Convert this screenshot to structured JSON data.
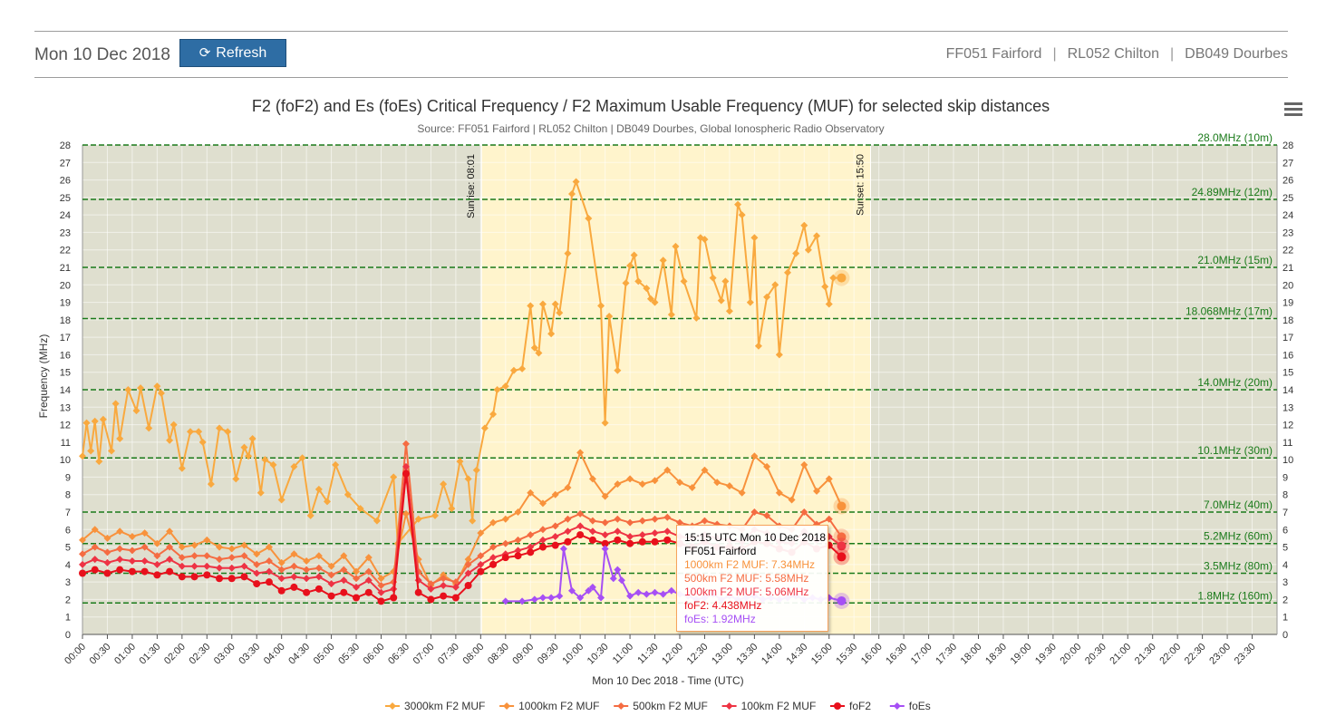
{
  "header": {
    "date": "Mon 10 Dec 2018",
    "refresh_label": "Refresh",
    "stations": [
      "FF051 Fairford",
      "RL052 Chilton",
      "DB049 Dourbes"
    ],
    "separator": "|"
  },
  "chart_data": {
    "type": "line",
    "title": "F2 (foF2) and Es (foEs) Critical Frequency / F2 Maximum Usable Frequency (MUF) for selected skip distances",
    "subtitle": "Source: FF051 Fairford | RL052 Chilton | DB049 Dourbes, Global Ionospheric Radio Observatory",
    "xlabel": "Mon 10 Dec 2018 - Time (UTC)",
    "ylabel": "Frequency (MHz)",
    "ylim": [
      0,
      28
    ],
    "xlim": [
      "00:00",
      "24:00"
    ],
    "x_ticks": [
      "00:00",
      "00:30",
      "01:00",
      "01:30",
      "02:00",
      "02:30",
      "03:00",
      "03:30",
      "04:00",
      "04:30",
      "05:00",
      "05:30",
      "06:00",
      "06:30",
      "07:00",
      "07:30",
      "08:00",
      "08:30",
      "09:00",
      "09:30",
      "10:00",
      "10:30",
      "11:00",
      "11:30",
      "12:00",
      "12:30",
      "13:00",
      "13:30",
      "14:00",
      "14:30",
      "15:00",
      "15:30",
      "16:00",
      "16:30",
      "17:00",
      "17:30",
      "18:00",
      "18:30",
      "19:00",
      "19:30",
      "20:00",
      "20:30",
      "21:00",
      "21:30",
      "22:00",
      "22:30",
      "23:00",
      "23:30"
    ],
    "y_ticks": [
      0,
      1,
      2,
      3,
      4,
      5,
      6,
      7,
      8,
      9,
      10,
      11,
      12,
      13,
      14,
      15,
      16,
      17,
      18,
      19,
      20,
      21,
      22,
      23,
      24,
      25,
      26,
      27,
      28
    ],
    "night_color": "#dfdfcf",
    "day_color": "#fff4cc",
    "daylight": {
      "sunrise": "08:01",
      "sunset": "15:50",
      "sunrise_label": "Sunrise: 08:01",
      "sunset_label": "Sunset: 15:50"
    },
    "band_lines": [
      {
        "value": 28.0,
        "label": "28.0MHz (10m)"
      },
      {
        "value": 24.89,
        "label": "24.89MHz (12m)"
      },
      {
        "value": 21.0,
        "label": "21.0MHz (15m)"
      },
      {
        "value": 18.068,
        "label": "18.068MHz (17m)"
      },
      {
        "value": 14.0,
        "label": "14.0MHz (20m)"
      },
      {
        "value": 10.1,
        "label": "10.1MHz (30m)"
      },
      {
        "value": 7.0,
        "label": "7.0MHz (40m)"
      },
      {
        "value": 5.2,
        "label": "5.2MHz (60m)"
      },
      {
        "value": 3.5,
        "label": "3.5MHz (80m)"
      },
      {
        "value": 1.8,
        "label": "1.8MHz (160m)"
      }
    ],
    "band_color": "#1a7a1a",
    "series": [
      {
        "name": "3000km F2 MUF",
        "color": "#f9a93f",
        "marker": "diamond",
        "x": [
          "00:00",
          "00:05",
          "00:10",
          "00:15",
          "00:20",
          "00:25",
          "00:35",
          "00:40",
          "00:45",
          "00:55",
          "01:05",
          "01:10",
          "01:20",
          "01:30",
          "01:35",
          "01:45",
          "01:50",
          "02:00",
          "02:10",
          "02:20",
          "02:25",
          "02:35",
          "02:45",
          "02:55",
          "03:05",
          "03:15",
          "03:20",
          "03:25",
          "03:35",
          "03:40",
          "03:50",
          "04:00",
          "04:15",
          "04:25",
          "04:35",
          "04:45",
          "04:55",
          "05:05",
          "05:20",
          "05:35",
          "05:55",
          "06:15",
          "06:20",
          "06:45",
          "07:05",
          "07:15",
          "07:25",
          "07:35",
          "07:45",
          "07:50",
          "07:55",
          "08:05",
          "08:15",
          "08:20",
          "08:30",
          "08:40",
          "08:50",
          "09:00",
          "09:05",
          "09:10",
          "09:15",
          "09:25",
          "09:30",
          "09:35",
          "09:45",
          "09:50",
          "09:55",
          "10:10",
          "10:25",
          "10:30",
          "10:35",
          "10:45",
          "10:55",
          "11:00",
          "11:05",
          "11:10",
          "11:20",
          "11:25",
          "11:30",
          "11:40",
          "11:50",
          "11:55",
          "12:05",
          "12:20",
          "12:25",
          "12:30",
          "12:40",
          "12:50",
          "12:55",
          "13:00",
          "13:10",
          "13:15",
          "13:25",
          "13:30",
          "13:35",
          "13:45",
          "13:55",
          "14:00",
          "14:10",
          "14:20",
          "14:30",
          "14:35",
          "14:45",
          "14:55",
          "15:00",
          "15:05",
          "15:15"
        ],
        "y": [
          10.2,
          12.1,
          10.5,
          12.2,
          9.9,
          12.3,
          10.5,
          13.2,
          11.2,
          14.0,
          12.8,
          14.1,
          11.8,
          14.2,
          13.8,
          11.1,
          12.0,
          9.5,
          11.6,
          11.6,
          11.0,
          8.6,
          11.8,
          11.6,
          8.9,
          10.7,
          10.2,
          11.2,
          8.1,
          10.0,
          9.7,
          7.7,
          9.6,
          10.1,
          6.8,
          8.3,
          7.6,
          9.7,
          8.0,
          7.2,
          6.5,
          9.0,
          5.2,
          6.6,
          6.8,
          8.6,
          7.2,
          9.9,
          8.9,
          6.5,
          9.4,
          11.8,
          12.6,
          14.0,
          14.2,
          15.1,
          15.2,
          18.8,
          16.4,
          16.1,
          18.9,
          17.2,
          18.9,
          18.4,
          21.8,
          25.2,
          25.9,
          23.8,
          18.8,
          12.1,
          18.2,
          15.1,
          20.1,
          21.1,
          21.7,
          20.2,
          19.8,
          19.2,
          19.0,
          21.4,
          18.3,
          22.2,
          20.2,
          18.1,
          22.7,
          22.6,
          20.4,
          19.1,
          20.2,
          18.5,
          24.6,
          24.0,
          19.0,
          22.7,
          16.5,
          19.3,
          20.0,
          16.0,
          20.7,
          21.8,
          23.4,
          22.0,
          22.8,
          19.9,
          18.9,
          20.4,
          20.4
        ]
      },
      {
        "name": "1000km F2 MUF",
        "color": "#f8923c",
        "marker": "diamond",
        "x": [
          "00:00",
          "00:15",
          "00:30",
          "00:45",
          "01:00",
          "01:15",
          "01:30",
          "01:45",
          "02:00",
          "02:15",
          "02:30",
          "02:45",
          "03:00",
          "03:15",
          "03:30",
          "03:45",
          "04:00",
          "04:15",
          "04:30",
          "04:45",
          "05:00",
          "05:15",
          "05:30",
          "05:45",
          "06:00",
          "06:15",
          "06:30",
          "06:45",
          "07:00",
          "07:15",
          "07:30",
          "07:45",
          "08:00",
          "08:15",
          "08:30",
          "08:45",
          "09:00",
          "09:15",
          "09:30",
          "09:45",
          "10:00",
          "10:15",
          "10:30",
          "10:45",
          "11:00",
          "11:15",
          "11:30",
          "11:45",
          "12:00",
          "12:15",
          "12:30",
          "12:45",
          "13:00",
          "13:15",
          "13:30",
          "13:45",
          "14:00",
          "14:15",
          "14:30",
          "14:45",
          "15:00",
          "15:15"
        ],
        "y": [
          5.4,
          6.0,
          5.5,
          5.9,
          5.6,
          5.8,
          5.2,
          5.9,
          5.0,
          5.1,
          5.4,
          5.0,
          4.9,
          5.1,
          4.6,
          5.0,
          4.1,
          4.6,
          4.2,
          4.5,
          3.9,
          4.5,
          3.6,
          4.4,
          3.2,
          3.6,
          6.9,
          4.3,
          2.8,
          3.4,
          2.9,
          4.3,
          5.8,
          6.4,
          6.6,
          7.0,
          8.1,
          7.5,
          8.0,
          8.4,
          10.4,
          8.9,
          7.9,
          8.6,
          8.9,
          8.6,
          8.8,
          9.4,
          8.7,
          8.4,
          9.4,
          8.7,
          8.5,
          8.1,
          10.2,
          9.6,
          8.1,
          7.7,
          9.7,
          8.2,
          8.9,
          7.34
        ]
      },
      {
        "name": "500km F2 MUF",
        "color": "#f56c42",
        "marker": "diamond",
        "x": [
          "00:00",
          "00:15",
          "00:30",
          "00:45",
          "01:00",
          "01:15",
          "01:30",
          "01:45",
          "02:00",
          "02:15",
          "02:30",
          "02:45",
          "03:00",
          "03:15",
          "03:30",
          "03:45",
          "04:00",
          "04:15",
          "04:30",
          "04:45",
          "05:00",
          "05:15",
          "05:30",
          "05:45",
          "06:00",
          "06:15",
          "06:30",
          "06:45",
          "07:00",
          "07:15",
          "07:30",
          "07:45",
          "08:00",
          "08:15",
          "08:30",
          "08:45",
          "09:00",
          "09:15",
          "09:30",
          "09:45",
          "10:00",
          "10:15",
          "10:30",
          "10:45",
          "11:00",
          "11:15",
          "11:30",
          "11:45",
          "12:00",
          "12:15",
          "12:30",
          "12:45",
          "13:00",
          "13:15",
          "13:30",
          "13:45",
          "14:00",
          "14:15",
          "14:30",
          "14:45",
          "15:00",
          "15:15"
        ],
        "y": [
          4.6,
          5.0,
          4.7,
          4.9,
          4.8,
          5.0,
          4.5,
          5.0,
          4.4,
          4.5,
          4.5,
          4.3,
          4.4,
          4.5,
          4.0,
          4.2,
          3.7,
          3.9,
          3.7,
          3.8,
          3.4,
          3.7,
          3.2,
          3.6,
          2.8,
          3.0,
          10.9,
          3.6,
          2.9,
          3.2,
          3.0,
          4.0,
          4.5,
          5.0,
          5.2,
          5.4,
          5.7,
          6.0,
          6.2,
          6.6,
          6.9,
          6.5,
          6.4,
          6.6,
          6.4,
          6.5,
          6.6,
          6.7,
          6.4,
          6.2,
          6.5,
          6.3,
          6.2,
          6.0,
          7.0,
          6.8,
          6.2,
          6.0,
          7.0,
          6.3,
          6.6,
          5.58
        ]
      },
      {
        "name": "100km F2 MUF",
        "color": "#ee3344",
        "marker": "diamond",
        "x": [
          "00:00",
          "00:15",
          "00:30",
          "00:45",
          "01:00",
          "01:15",
          "01:30",
          "01:45",
          "02:00",
          "02:15",
          "02:30",
          "02:45",
          "03:00",
          "03:15",
          "03:30",
          "03:45",
          "04:00",
          "04:15",
          "04:30",
          "04:45",
          "05:00",
          "05:15",
          "05:30",
          "05:45",
          "06:00",
          "06:15",
          "06:30",
          "06:45",
          "07:00",
          "07:15",
          "07:30",
          "07:45",
          "08:00",
          "08:15",
          "08:30",
          "08:45",
          "09:00",
          "09:15",
          "09:30",
          "09:45",
          "10:00",
          "10:15",
          "10:30",
          "10:45",
          "11:00",
          "11:15",
          "11:30",
          "11:45",
          "12:00",
          "12:15",
          "12:30",
          "12:45",
          "13:00",
          "13:15",
          "13:30",
          "13:45",
          "14:00",
          "14:15",
          "14:30",
          "14:45",
          "15:00",
          "15:15"
        ],
        "y": [
          4.0,
          4.3,
          4.1,
          4.3,
          4.2,
          4.2,
          4.0,
          4.3,
          3.9,
          3.9,
          3.9,
          3.8,
          3.8,
          3.9,
          3.5,
          3.6,
          3.2,
          3.3,
          3.2,
          3.3,
          2.9,
          3.1,
          2.7,
          3.1,
          2.4,
          2.6,
          9.6,
          3.1,
          2.6,
          2.8,
          2.7,
          3.5,
          4.0,
          4.4,
          4.6,
          4.8,
          5.0,
          5.4,
          5.6,
          5.9,
          6.2,
          5.9,
          5.7,
          5.9,
          5.6,
          5.7,
          5.8,
          5.9,
          5.6,
          5.5,
          5.7,
          5.5,
          5.4,
          5.3,
          6.0,
          5.8,
          5.3,
          5.2,
          5.9,
          5.4,
          5.6,
          5.06
        ]
      },
      {
        "name": "foF2",
        "color": "#e8101c",
        "marker": "circle",
        "x": [
          "00:00",
          "00:15",
          "00:30",
          "00:45",
          "01:00",
          "01:15",
          "01:30",
          "01:45",
          "02:00",
          "02:15",
          "02:30",
          "02:45",
          "03:00",
          "03:15",
          "03:30",
          "03:45",
          "04:00",
          "04:15",
          "04:30",
          "04:45",
          "05:00",
          "05:15",
          "05:30",
          "05:45",
          "06:00",
          "06:15",
          "06:30",
          "06:45",
          "07:00",
          "07:15",
          "07:30",
          "07:45",
          "08:00",
          "08:15",
          "08:30",
          "08:45",
          "09:00",
          "09:15",
          "09:30",
          "09:45",
          "10:00",
          "10:15",
          "10:30",
          "10:45",
          "11:00",
          "11:15",
          "11:30",
          "11:45",
          "12:00",
          "12:15",
          "12:30",
          "12:45",
          "13:00",
          "13:15",
          "13:30",
          "13:45",
          "14:00",
          "14:15",
          "14:30",
          "14:45",
          "15:00",
          "15:15"
        ],
        "y": [
          3.5,
          3.7,
          3.5,
          3.7,
          3.6,
          3.6,
          3.4,
          3.6,
          3.3,
          3.3,
          3.4,
          3.2,
          3.2,
          3.3,
          2.9,
          3.0,
          2.5,
          2.7,
          2.4,
          2.6,
          2.2,
          2.4,
          2.1,
          2.4,
          1.9,
          2.1,
          9.2,
          2.4,
          2.0,
          2.2,
          2.1,
          2.8,
          3.6,
          4.0,
          4.4,
          4.5,
          4.7,
          5.0,
          5.1,
          5.3,
          5.7,
          5.4,
          5.2,
          5.4,
          5.2,
          5.3,
          5.3,
          5.4,
          5.2,
          5.0,
          5.3,
          5.0,
          5.0,
          4.9,
          5.3,
          5.2,
          4.9,
          4.7,
          5.3,
          4.9,
          5.1,
          4.438
        ]
      },
      {
        "name": "foEs",
        "color": "#a64ff5",
        "marker": "diamond",
        "x": [
          "08:30",
          "08:50",
          "09:05",
          "09:15",
          "09:25",
          "09:35",
          "09:40",
          "09:50",
          "10:00",
          "10:10",
          "10:15",
          "10:25",
          "10:30",
          "10:40",
          "10:45",
          "10:50",
          "11:00",
          "11:10",
          "11:20",
          "11:30",
          "11:40",
          "11:50",
          "12:00",
          "12:10",
          "12:20",
          "12:30",
          "12:40",
          "12:50",
          "13:00",
          "13:10",
          "13:20",
          "13:30",
          "13:40",
          "13:50",
          "14:00",
          "14:10",
          "14:20",
          "14:30",
          "14:40",
          "14:50",
          "15:00",
          "15:15"
        ],
        "y": [
          1.9,
          1.9,
          2.0,
          2.1,
          2.1,
          2.2,
          4.9,
          2.5,
          2.1,
          2.5,
          2.7,
          2.1,
          4.9,
          3.2,
          3.7,
          3.1,
          2.2,
          2.4,
          2.3,
          2.4,
          2.3,
          2.5,
          2.3,
          2.2,
          2.0,
          2.1,
          2.3,
          2.0,
          2.2,
          2.0,
          2.1,
          2.2,
          2.0,
          2.1,
          2.0,
          2.1,
          2.2,
          2.0,
          2.1,
          2.0,
          2.1,
          1.92
        ]
      }
    ],
    "tooltip": {
      "time": "15:15 UTC Mon 10 Dec 2018",
      "station": "FF051 Fairford",
      "lines": [
        "1000km F2 MUF: 7.34MHz",
        "500km F2 MUF: 5.58MHz",
        "100km F2 MUF: 5.06MHz",
        "foF2: 4.438MHz",
        "foEs: 1.92MHz"
      ],
      "line_colors": [
        "#f8923c",
        "#f56c42",
        "#ee3344",
        "#e8101c",
        "#a64ff5"
      ],
      "hover_time": "15:15"
    },
    "legend_position": "bottom-center"
  }
}
